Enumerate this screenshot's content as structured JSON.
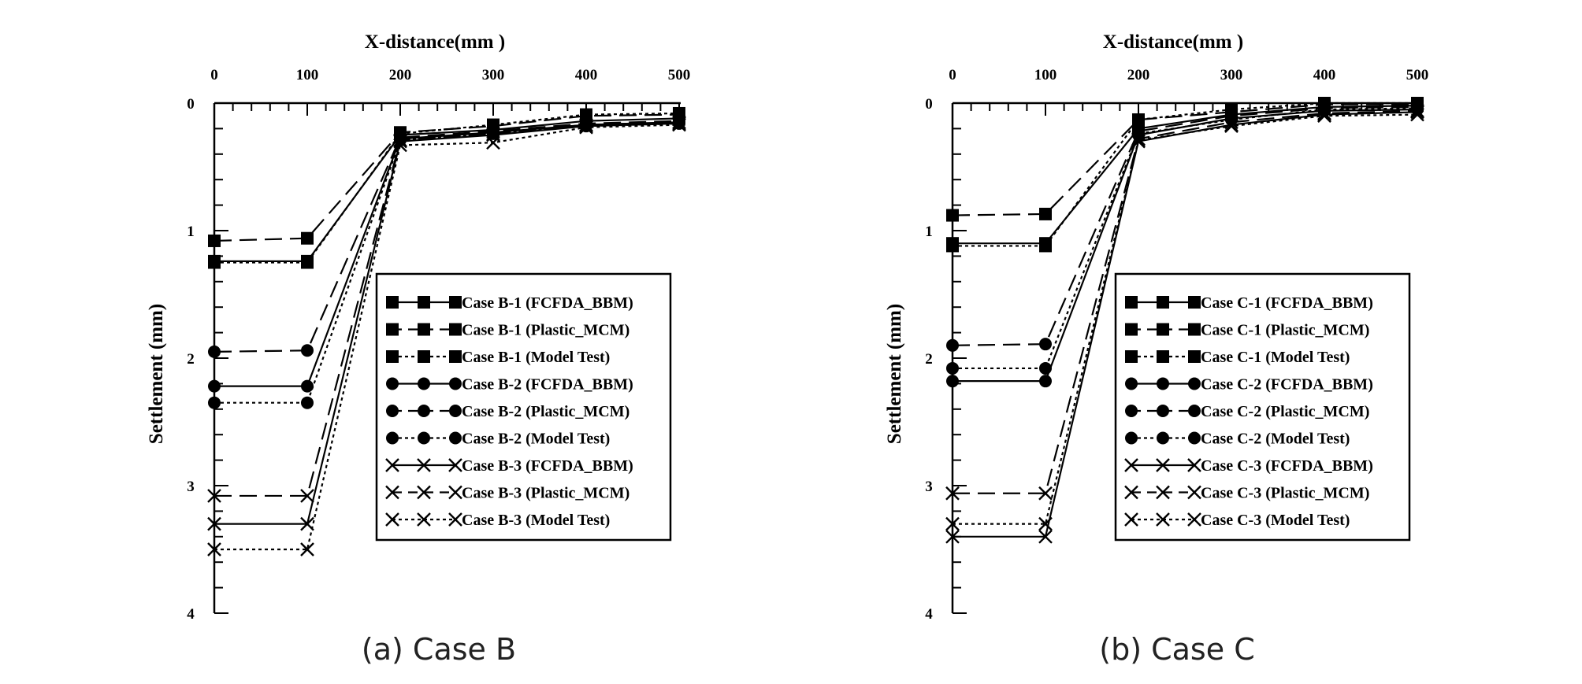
{
  "chart_data": [
    {
      "type": "line",
      "caption": "(a) Case B",
      "xlabel": "X-distance(mm )",
      "ylabel": "Settlement (mm)",
      "xlim": [
        0,
        500
      ],
      "ylim": [
        0,
        4
      ],
      "y_inverted": true,
      "x_axis_position": "top",
      "x_ticks": [
        "0",
        "100",
        "200",
        "300",
        "400",
        "500"
      ],
      "y_ticks": [
        "0",
        "1",
        "2",
        "3",
        "4"
      ],
      "grid": false,
      "legend_position": "center-right",
      "x": [
        0,
        100,
        200,
        300,
        400,
        500
      ],
      "series": [
        {
          "name": "Case B-1 (FCFDA_BBM)",
          "marker": "square",
          "line": "solid",
          "values": [
            1.24,
            1.24,
            0.25,
            0.21,
            0.14,
            0.12
          ]
        },
        {
          "name": "Case B-1 (Plastic_MCM)",
          "marker": "square",
          "line": "dashed",
          "values": [
            1.08,
            1.06,
            0.23,
            0.18,
            0.1,
            0.09
          ]
        },
        {
          "name": "Case B-1 (Model Test)",
          "marker": "square",
          "line": "dotted",
          "values": [
            1.25,
            1.25,
            0.24,
            0.17,
            0.09,
            0.08
          ]
        },
        {
          "name": "Case B-2 (FCFDA_BBM)",
          "marker": "circle",
          "line": "solid",
          "values": [
            2.22,
            2.22,
            0.28,
            0.23,
            0.17,
            0.15
          ]
        },
        {
          "name": "Case B-2 (Plastic_MCM)",
          "marker": "circle",
          "line": "dashed",
          "values": [
            1.95,
            1.94,
            0.27,
            0.22,
            0.16,
            0.14
          ]
        },
        {
          "name": "Case B-2 (Model Test)",
          "marker": "circle",
          "line": "dotted",
          "values": [
            2.35,
            2.35,
            0.29,
            0.24,
            0.18,
            0.16
          ]
        },
        {
          "name": "Case B-3 (FCFDA_BBM)",
          "marker": "cross",
          "line": "solid",
          "values": [
            3.3,
            3.3,
            0.3,
            0.25,
            0.18,
            0.16
          ]
        },
        {
          "name": "Case B-3 (Plastic_MCM)",
          "marker": "cross",
          "line": "dashed",
          "values": [
            3.08,
            3.08,
            0.29,
            0.24,
            0.17,
            0.15
          ]
        },
        {
          "name": "Case B-3 (Model Test)",
          "marker": "cross",
          "line": "dotted",
          "values": [
            3.5,
            3.5,
            0.33,
            0.31,
            0.19,
            0.17
          ]
        }
      ]
    },
    {
      "type": "line",
      "caption": "(b) Case C",
      "xlabel": "X-distance(mm )",
      "ylabel": "Settlement (mm)",
      "xlim": [
        0,
        500
      ],
      "ylim": [
        0,
        4
      ],
      "y_inverted": true,
      "x_axis_position": "top",
      "x_ticks": [
        "0",
        "100",
        "200",
        "300",
        "400",
        "500"
      ],
      "y_ticks": [
        "0",
        "1",
        "2",
        "3",
        "4"
      ],
      "grid": false,
      "legend_position": "center-right",
      "x": [
        0,
        100,
        200,
        300,
        400,
        500
      ],
      "series": [
        {
          "name": "Case C-1 (FCFDA_BBM)",
          "marker": "square",
          "line": "solid",
          "values": [
            1.1,
            1.1,
            0.2,
            0.09,
            0.03,
            0.02
          ]
        },
        {
          "name": "Case C-1 (Plastic_MCM)",
          "marker": "square",
          "line": "dashed",
          "values": [
            0.88,
            0.87,
            0.13,
            0.07,
            0.01,
            0.01
          ]
        },
        {
          "name": "Case C-1 (Model Test)",
          "marker": "square",
          "line": "dotted",
          "values": [
            1.12,
            1.12,
            0.13,
            0.05,
            0.0,
            0.0
          ]
        },
        {
          "name": "Case C-2 (FCFDA_BBM)",
          "marker": "circle",
          "line": "solid",
          "values": [
            2.18,
            2.18,
            0.25,
            0.12,
            0.06,
            0.05
          ]
        },
        {
          "name": "Case C-2 (Plastic_MCM)",
          "marker": "circle",
          "line": "dashed",
          "values": [
            1.9,
            1.89,
            0.22,
            0.1,
            0.04,
            0.03
          ]
        },
        {
          "name": "Case C-2 (Model Test)",
          "marker": "circle",
          "line": "dotted",
          "values": [
            2.08,
            2.08,
            0.24,
            0.13,
            0.05,
            0.04
          ]
        },
        {
          "name": "Case C-3 (FCFDA_BBM)",
          "marker": "cross",
          "line": "solid",
          "values": [
            3.4,
            3.4,
            0.3,
            0.17,
            0.09,
            0.07
          ]
        },
        {
          "name": "Case C-3 (Plastic_MCM)",
          "marker": "cross",
          "line": "dashed",
          "values": [
            3.06,
            3.06,
            0.28,
            0.15,
            0.08,
            0.06
          ]
        },
        {
          "name": "Case C-3 (Model Test)",
          "marker": "cross",
          "line": "dotted",
          "values": [
            3.3,
            3.3,
            0.29,
            0.18,
            0.1,
            0.09
          ]
        }
      ]
    }
  ]
}
